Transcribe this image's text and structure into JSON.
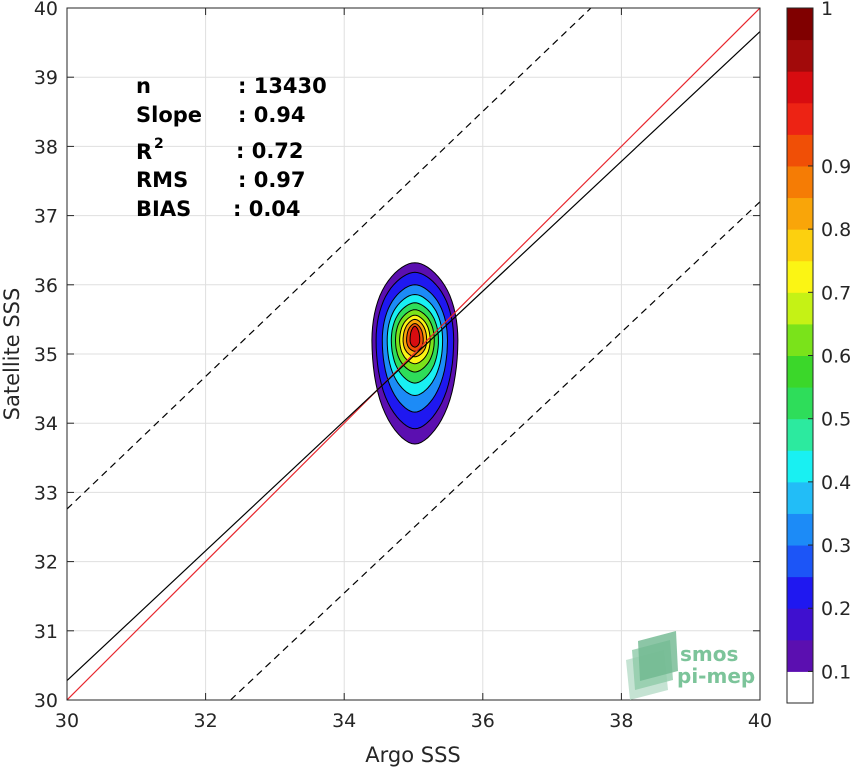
{
  "chart_data": {
    "type": "scatter",
    "subtype": "density-contour",
    "xlabel": "Argo SSS",
    "ylabel": "Satellite SSS",
    "xlim": [
      30,
      40
    ],
    "ylim": [
      30,
      40
    ],
    "xticks": [
      30,
      32,
      34,
      36,
      38,
      40
    ],
    "yticks": [
      30,
      31,
      32,
      33,
      34,
      35,
      36,
      37,
      38,
      39,
      40
    ],
    "grid": true,
    "stats": [
      {
        "label": "n",
        "value": ": 13430"
      },
      {
        "label": "Slope",
        "value": ": 0.94"
      },
      {
        "label": "R",
        "sup": "2",
        "value": ": 0.72"
      },
      {
        "label": "RMS",
        "value": ": 0.97"
      },
      {
        "label": "BIAS",
        "value": ": 0.04"
      }
    ],
    "lines": [
      {
        "role": "identity",
        "color": "#e8262d",
        "x": [
          30,
          40
        ],
        "y": [
          30,
          40
        ]
      },
      {
        "role": "regression",
        "color": "#000000",
        "x": [
          30,
          40
        ],
        "y": [
          30.28,
          39.66
        ]
      },
      {
        "role": "upper-bound",
        "color": "#000000",
        "dash": true,
        "x": [
          30,
          37.56
        ],
        "y": [
          32.76,
          40
        ]
      },
      {
        "role": "lower-bound",
        "color": "#000000",
        "dash": true,
        "x": [
          32.36,
          40
        ],
        "y": [
          30,
          37.2
        ]
      }
    ],
    "density_center": {
      "x": 35.02,
      "y": 35.2
    },
    "density_contours": [
      {
        "level": 0.05,
        "half_width": 0.62,
        "y_top": 36.32,
        "y_bottom": 33.7
      },
      {
        "level": 0.1,
        "half_width": 0.56,
        "y_top": 36.18,
        "y_bottom": 33.92
      },
      {
        "level": 0.2,
        "half_width": 0.47,
        "y_top": 36.0,
        "y_bottom": 34.16
      },
      {
        "level": 0.3,
        "half_width": 0.4,
        "y_top": 35.86,
        "y_bottom": 34.4
      },
      {
        "level": 0.4,
        "half_width": 0.34,
        "y_top": 35.74,
        "y_bottom": 34.58
      },
      {
        "level": 0.5,
        "half_width": 0.28,
        "y_top": 35.64,
        "y_bottom": 34.74
      },
      {
        "level": 0.6,
        "half_width": 0.22,
        "y_top": 35.56,
        "y_bottom": 34.86
      },
      {
        "level": 0.7,
        "half_width": 0.17,
        "y_top": 35.5,
        "y_bottom": 34.96
      },
      {
        "level": 0.8,
        "half_width": 0.12,
        "y_top": 35.44,
        "y_bottom": 35.04
      },
      {
        "level": 0.9,
        "half_width": 0.07,
        "y_top": 35.4,
        "y_bottom": 35.1
      }
    ],
    "colorbar": {
      "ticks": [
        "0.1",
        "0.2",
        "0.3",
        "0.4",
        "0.5",
        "0.6",
        "0.7",
        "0.8",
        "0.9",
        "1"
      ],
      "colors": [
        "#ffffff",
        "#5b0fb0",
        "#3f10cf",
        "#1f18f0",
        "#1c55f7",
        "#1c8bf7",
        "#22bdf7",
        "#19f0f2",
        "#2cea9f",
        "#2edd5a",
        "#3bd72a",
        "#7ae31a",
        "#c5f215",
        "#fbf514",
        "#fcd00f",
        "#f9a509",
        "#f57c05",
        "#f04f06",
        "#ed2314",
        "#d80c10",
        "#a20a0a",
        "#800000"
      ]
    }
  },
  "watermark": {
    "line1": "smos",
    "line2": "pi-mep"
  }
}
